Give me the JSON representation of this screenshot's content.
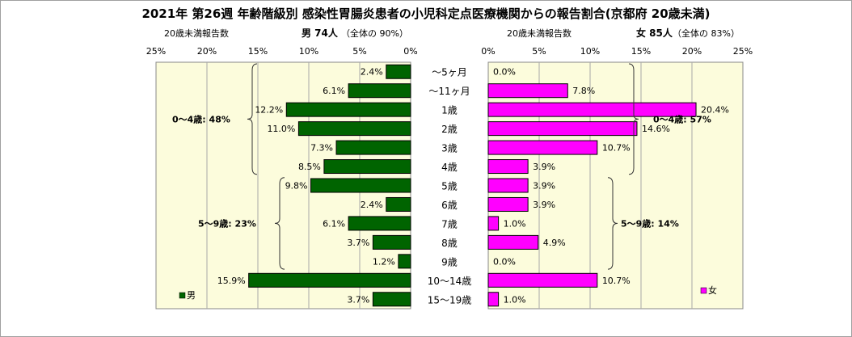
{
  "chart_data": {
    "type": "bar",
    "title": "2021年 第26週 年齢階級別 感染性胃腸炎患者の小児科定点医療機関からの報告割合(京都府 20歳未満)",
    "categories": [
      "～5ヶ月",
      "～11ヶ月",
      "1歳",
      "2歳",
      "3歳",
      "4歳",
      "5歳",
      "6歳",
      "7歳",
      "8歳",
      "9歳",
      "10～14歳",
      "15～19歳"
    ],
    "xlim": [
      0,
      25
    ],
    "xticks": [
      "0%",
      "5%",
      "10%",
      "15%",
      "20%",
      "25%"
    ],
    "grid": true,
    "male": {
      "subtitle_left": "20歳未満報告数",
      "subtitle_main": "男  74人",
      "subtitle_share": "（全体の  90%）",
      "legend": "男",
      "color": "#006400",
      "bg": "#fcfcdc",
      "values": [
        2.4,
        6.1,
        12.2,
        11.0,
        7.3,
        8.5,
        9.8,
        2.4,
        6.1,
        3.7,
        1.2,
        15.9,
        3.7
      ],
      "labels": [
        "2.4%",
        "6.1%",
        "12.2%",
        "11.0%",
        "7.3%",
        "8.5%",
        "9.8%",
        "2.4%",
        "6.1%",
        "3.7%",
        "1.2%",
        "15.9%",
        "3.7%"
      ],
      "groups": [
        {
          "text": "0～4歳: 48%",
          "from": 0,
          "to": 5
        },
        {
          "text": "5～9歳: 23%",
          "from": 6,
          "to": 10
        }
      ]
    },
    "female": {
      "subtitle_left": "20歳未満報告数",
      "subtitle_main": "女  85人",
      "subtitle_share": "（全体の  83%）",
      "legend": "女",
      "color": "#ff00ff",
      "bg": "#fcfcdc",
      "values": [
        0.0,
        7.8,
        20.4,
        14.6,
        10.7,
        3.9,
        3.9,
        3.9,
        1.0,
        4.9,
        0.0,
        10.7,
        1.0
      ],
      "labels": [
        "0.0%",
        "7.8%",
        "20.4%",
        "14.6%",
        "10.7%",
        "3.9%",
        "3.9%",
        "3.9%",
        "1.0%",
        "4.9%",
        "0.0%",
        "10.7%",
        "1.0%"
      ],
      "groups": [
        {
          "text": "0～4歳: 57%",
          "from": 0,
          "to": 5
        },
        {
          "text": "5～9歳: 14%",
          "from": 6,
          "to": 10
        }
      ]
    }
  }
}
